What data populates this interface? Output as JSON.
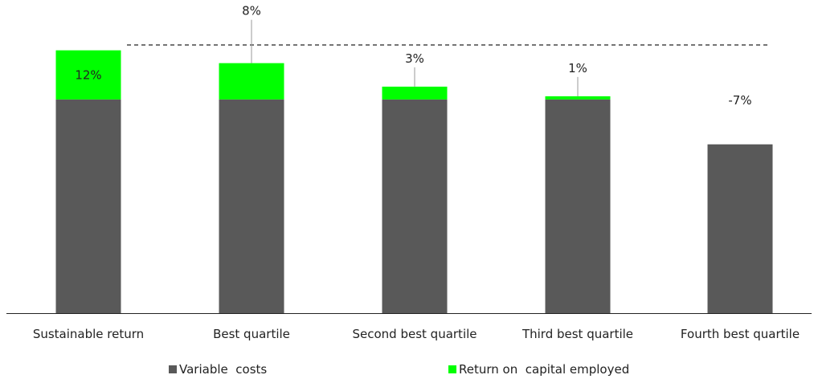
{
  "chart_data": {
    "type": "bar",
    "stacked": true,
    "categories": [
      "Sustainable return",
      "Best quartile",
      "Second best quartile",
      "Third best quartile",
      "Fourth best quartile"
    ],
    "series": [
      {
        "name": "Variable  costs",
        "color": "#595959",
        "values": [
          100,
          100,
          100,
          100,
          79
        ]
      },
      {
        "name": "Return on  capital employed",
        "color": "#00ff00",
        "values": [
          23,
          17,
          6,
          1.5,
          0
        ]
      }
    ],
    "data_labels": [
      "12%",
      "8%",
      "3%",
      "1%",
      "-7%"
    ],
    "reference_line": {
      "value": 124,
      "style": "dashed"
    },
    "ylim": [
      0,
      124
    ],
    "legend_position": "bottom",
    "grid": false
  }
}
